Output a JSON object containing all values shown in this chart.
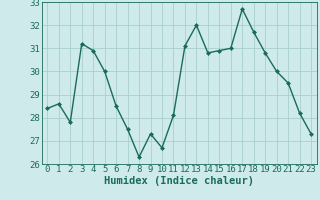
{
  "x": [
    0,
    1,
    2,
    3,
    4,
    5,
    6,
    7,
    8,
    9,
    10,
    11,
    12,
    13,
    14,
    15,
    16,
    17,
    18,
    19,
    20,
    21,
    22,
    23
  ],
  "y": [
    28.4,
    28.6,
    27.8,
    31.2,
    30.9,
    30.0,
    28.5,
    27.5,
    26.3,
    27.3,
    26.7,
    28.1,
    31.1,
    32.0,
    30.8,
    30.9,
    31.0,
    32.7,
    31.7,
    30.8,
    30.0,
    29.5,
    28.2,
    27.3
  ],
  "line_color": "#1a6b5a",
  "marker": "D",
  "marker_size": 2.0,
  "bg_color": "#ceeaea",
  "grid_color": "#aacece",
  "xlabel": "Humidex (Indice chaleur)",
  "ylim": [
    26,
    33
  ],
  "xlim": [
    -0.5,
    23.5
  ],
  "yticks": [
    26,
    27,
    28,
    29,
    30,
    31,
    32,
    33
  ],
  "xticks": [
    0,
    1,
    2,
    3,
    4,
    5,
    6,
    7,
    8,
    9,
    10,
    11,
    12,
    13,
    14,
    15,
    16,
    17,
    18,
    19,
    20,
    21,
    22,
    23
  ],
  "xlabel_fontsize": 7.5,
  "tick_fontsize": 6.5,
  "line_width": 1.0
}
